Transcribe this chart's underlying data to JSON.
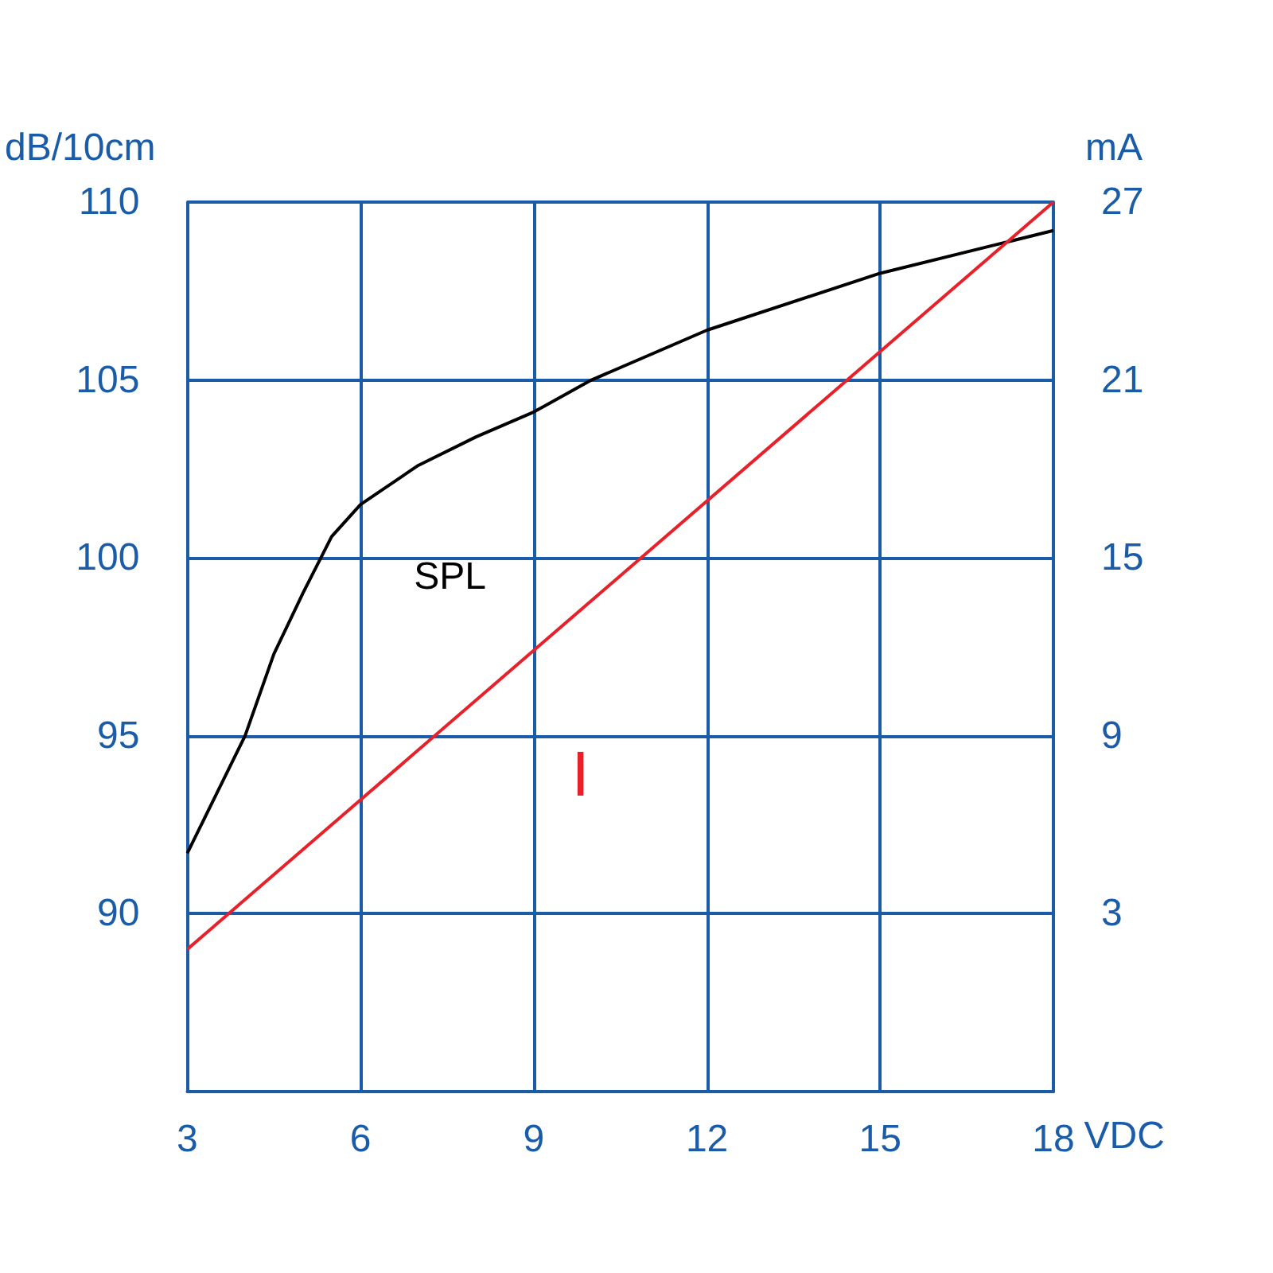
{
  "chart_data": {
    "type": "line",
    "xlabel": "VDC",
    "ylabel": "dB/10cm",
    "y2label": "mA",
    "xlim": [
      3,
      18
    ],
    "xticks": [
      3,
      6,
      9,
      12,
      15,
      18
    ],
    "ylim": [
      85,
      110
    ],
    "yticks": [
      90,
      95,
      100,
      105,
      110
    ],
    "y2lim": [
      -3,
      27
    ],
    "y2ticks": [
      3,
      9,
      15,
      21,
      27
    ],
    "grid": true,
    "legend": false,
    "marker": "none",
    "line_style": "solid",
    "series": [
      {
        "name": "SPL",
        "color": "#000000",
        "x": [
          3,
          4,
          4.5,
          5,
          5.5,
          6,
          7,
          8,
          9,
          10,
          12,
          15,
          17,
          18
        ],
        "values": [
          91.7,
          95.0,
          97.3,
          99.0,
          100.6,
          101.5,
          102.6,
          103.4,
          104.1,
          105.0,
          106.4,
          108.0,
          108.8,
          109.2
        ]
      },
      {
        "name": "I",
        "color": "#e8202a",
        "axis": "y2",
        "x": [
          3,
          18
        ],
        "values": [
          1.8,
          27
        ]
      }
    ]
  }
}
